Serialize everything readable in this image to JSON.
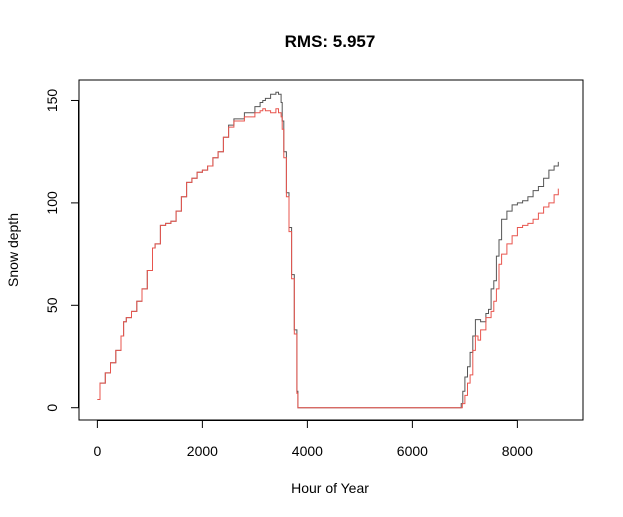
{
  "chart_data": {
    "type": "line",
    "title": "RMS: 5.957",
    "xlabel": "Hour of Year",
    "ylabel": "Snow depth",
    "xlim": [
      -350,
      9250
    ],
    "ylim": [
      -6,
      160
    ],
    "x_ticks": [
      0,
      2000,
      4000,
      6000,
      8000
    ],
    "x_tick_labels": [
      "0",
      "2000",
      "4000",
      "6000",
      "8000"
    ],
    "y_ticks": [
      0,
      50,
      100,
      150
    ],
    "y_tick_labels": [
      "0",
      "50",
      "100",
      "150"
    ],
    "grid": false,
    "legend": "none",
    "series": [
      {
        "color": "#555555",
        "x": [
          0,
          50,
          150,
          250,
          350,
          450,
          500,
          550,
          650,
          750,
          850,
          950,
          1050,
          1100,
          1200,
          1300,
          1400,
          1500,
          1600,
          1700,
          1800,
          1900,
          2000,
          2100,
          2200,
          2300,
          2400,
          2500,
          2600,
          2800,
          3000,
          3100,
          3150,
          3200,
          3300,
          3400,
          3450,
          3500,
          3520,
          3550,
          3600,
          3650,
          3700,
          3750,
          3800,
          3820,
          4000,
          5000,
          6000,
          6900,
          6930,
          6960,
          7000,
          7050,
          7100,
          7150,
          7200,
          7300,
          7400,
          7450,
          7500,
          7550,
          7600,
          7650,
          7700,
          7800,
          7900,
          8000,
          8100,
          8200,
          8300,
          8400,
          8500,
          8600,
          8700,
          8780
        ],
        "y": [
          4,
          12,
          17,
          22,
          28,
          35,
          42,
          44,
          47,
          52,
          58,
          67,
          78,
          80,
          89,
          90,
          91,
          96,
          103,
          110,
          112,
          115,
          116,
          118,
          122,
          125,
          132,
          138,
          141,
          144,
          147,
          149,
          150,
          151,
          153,
          154,
          153,
          149,
          140,
          125,
          105,
          88,
          65,
          38,
          8,
          0,
          0,
          0,
          0,
          0,
          2,
          8,
          15,
          20,
          27,
          35,
          43,
          42,
          46,
          48,
          58,
          62,
          74,
          82,
          92,
          96,
          99,
          100,
          101,
          103,
          106,
          108,
          112,
          116,
          118,
          120
        ]
      },
      {
        "color": "#e8554e",
        "x": [
          0,
          50,
          150,
          250,
          350,
          450,
          500,
          550,
          650,
          750,
          850,
          950,
          1050,
          1100,
          1200,
          1300,
          1400,
          1500,
          1600,
          1700,
          1800,
          1900,
          2000,
          2100,
          2200,
          2300,
          2400,
          2500,
          2600,
          2800,
          3000,
          3100,
          3150,
          3200,
          3300,
          3400,
          3450,
          3500,
          3520,
          3550,
          3600,
          3650,
          3700,
          3750,
          3800,
          3820,
          4000,
          5000,
          6000,
          6900,
          6950,
          7000,
          7050,
          7100,
          7150,
          7200,
          7250,
          7300,
          7400,
          7500,
          7550,
          7600,
          7650,
          7700,
          7800,
          7900,
          8000,
          8100,
          8200,
          8300,
          8400,
          8500,
          8600,
          8700,
          8780
        ],
        "y": [
          4,
          12,
          17,
          22,
          28,
          35,
          42,
          44,
          47,
          52,
          58,
          67,
          78,
          80,
          89,
          90,
          91,
          96,
          103,
          110,
          112,
          115,
          116,
          118,
          122,
          125,
          132,
          137,
          140,
          142,
          144,
          145,
          146,
          145,
          144,
          146,
          144,
          142,
          136,
          122,
          103,
          86,
          63,
          36,
          7,
          0,
          0,
          0,
          0,
          0,
          2,
          6,
          12,
          16,
          28,
          35,
          33,
          38,
          44,
          47,
          52,
          58,
          70,
          75,
          80,
          84,
          88,
          89,
          90,
          92,
          95,
          98,
          100,
          104,
          107
        ]
      }
    ]
  }
}
